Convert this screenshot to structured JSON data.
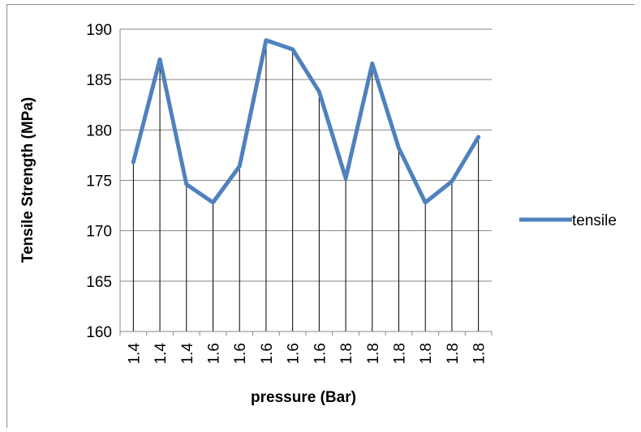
{
  "chart_data": {
    "type": "line",
    "categories": [
      "1.4",
      "1.4",
      "1.4",
      "1.6",
      "1.6",
      "1.6",
      "1.6",
      "1.6",
      "1.8",
      "1.8",
      "1.8",
      "1.8",
      "1.8",
      "1.8"
    ],
    "series": [
      {
        "name": "tensile",
        "values": [
          176.8,
          187.0,
          174.6,
          172.8,
          176.4,
          188.9,
          188.0,
          183.8,
          175.2,
          186.6,
          178.2,
          172.8,
          174.9,
          179.3
        ],
        "color": "#4f81bd"
      }
    ],
    "xlabel": "pressure (Bar)",
    "ylabel": "Tensile Strength (MPa)",
    "ylim": [
      160,
      190
    ],
    "yticks": [
      "160",
      "165",
      "170",
      "175",
      "180",
      "185",
      "190"
    ],
    "grid": "horizontal",
    "drop_lines": true,
    "legend": {
      "position": "right",
      "label": "tensile"
    }
  }
}
